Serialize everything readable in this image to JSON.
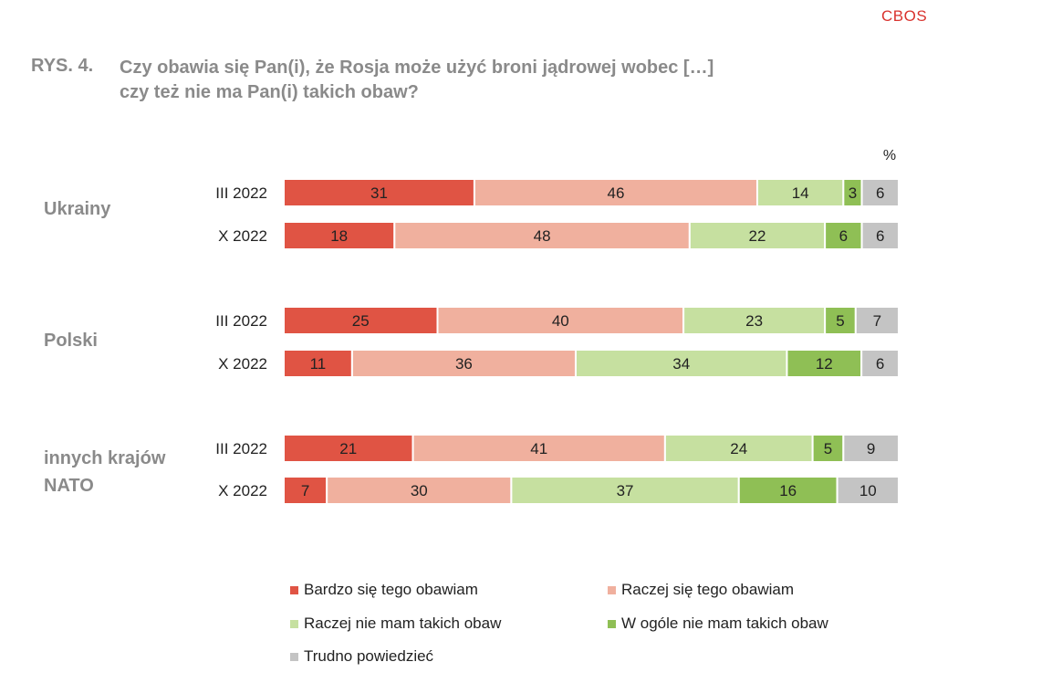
{
  "header": {
    "source": "CBOS",
    "figure_number": "RYS. 4.",
    "title_line1": "Czy obawia się Pan(i), że Rosja może użyć broni jądrowej wobec […]",
    "title_line2": "czy też nie ma Pan(i) takich obaw?"
  },
  "chart_data": {
    "type": "bar",
    "orientation": "horizontal",
    "stacked": true,
    "unit": "%",
    "legend_position": "bottom",
    "grid": false,
    "series": [
      {
        "name": "Bardzo się tego obawiam",
        "color": "#e05444"
      },
      {
        "name": "Raczej się tego obawiam",
        "color": "#f0b09e"
      },
      {
        "name": "Raczej nie mam takich obaw",
        "color": "#c6e0a0"
      },
      {
        "name": "W ogóle nie mam takich obaw",
        "color": "#8fbf55"
      },
      {
        "name": "Trudno powiedzieć",
        "color": "#c4c4c4"
      }
    ],
    "groups": [
      {
        "label_lines": [
          "Ukrainy"
        ],
        "rows": [
          {
            "label": "III 2022",
            "values": [
              31,
              46,
              14,
              3,
              6
            ]
          },
          {
            "label": "X 2022",
            "values": [
              18,
              48,
              22,
              6,
              6
            ]
          }
        ]
      },
      {
        "label_lines": [
          "Polski"
        ],
        "rows": [
          {
            "label": "III 2022",
            "values": [
              25,
              40,
              23,
              5,
              7
            ]
          },
          {
            "label": "X 2022",
            "values": [
              11,
              36,
              34,
              12,
              6
            ]
          }
        ]
      },
      {
        "label_lines": [
          "innych krajów",
          "NATO"
        ],
        "rows": [
          {
            "label": "III 2022",
            "values": [
              21,
              41,
              24,
              5,
              9
            ]
          },
          {
            "label": "X 2022",
            "values": [
              7,
              30,
              37,
              16,
              10
            ]
          }
        ]
      }
    ]
  }
}
